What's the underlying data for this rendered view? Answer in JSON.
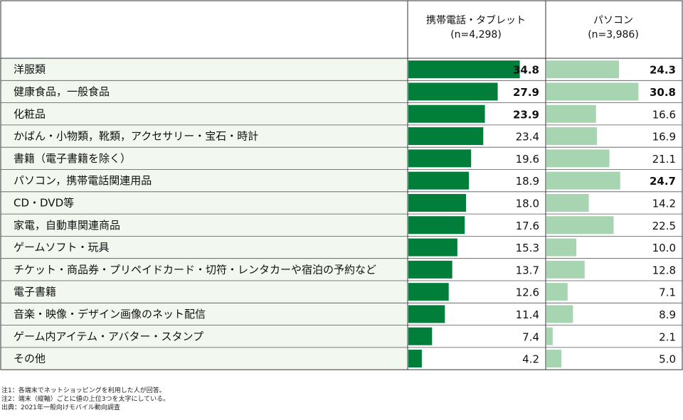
{
  "chart_data": {
    "type": "bar",
    "series": [
      {
        "name": "携帯電話・タブレット",
        "n_label": "(n=4,298)",
        "color": "#007e3a",
        "values": [
          34.8,
          27.9,
          23.9,
          23.4,
          19.6,
          18.9,
          18.0,
          17.6,
          15.3,
          13.7,
          12.6,
          11.4,
          7.4,
          4.2
        ],
        "bold_top3": [
          0,
          1,
          2
        ]
      },
      {
        "name": "パソコン",
        "n_label": "(n=3,986)",
        "color": "#a8d5b1",
        "values": [
          24.3,
          30.8,
          16.6,
          16.9,
          21.1,
          24.7,
          14.2,
          22.5,
          10.0,
          12.8,
          7.1,
          8.9,
          2.1,
          5.0
        ],
        "bold_top3": [
          0,
          1,
          5
        ]
      }
    ],
    "categories": [
      "洋服類",
      "健康食品，一般食品",
      "化粧品",
      "かばん・小物類，靴類，アクセサリー・宝石・時計",
      "書籍（電子書籍を除く）",
      "パソコン，携帯電話関連用品",
      "CD・DVD等",
      "家電，自動車関連商品",
      "ゲームソフト・玩具",
      "チケット・商品券・プリペイドカード・切符・レンタカーや宿泊の予約など",
      "電子書籍",
      "音楽・映像・デザイン画像のネット配信",
      "ゲーム内アイテム・アバター・スタンプ",
      "その他"
    ],
    "ylim": [
      0,
      40
    ],
    "unit": "%"
  },
  "notes": {
    "note1": "注1：各端末でネットショッピングを利用した人が回答。",
    "note2": "注2：端末（縦軸）ごとに値の上位3つを太字にしている。",
    "source": "出典：2021年一般向けモバイル動向調査"
  }
}
